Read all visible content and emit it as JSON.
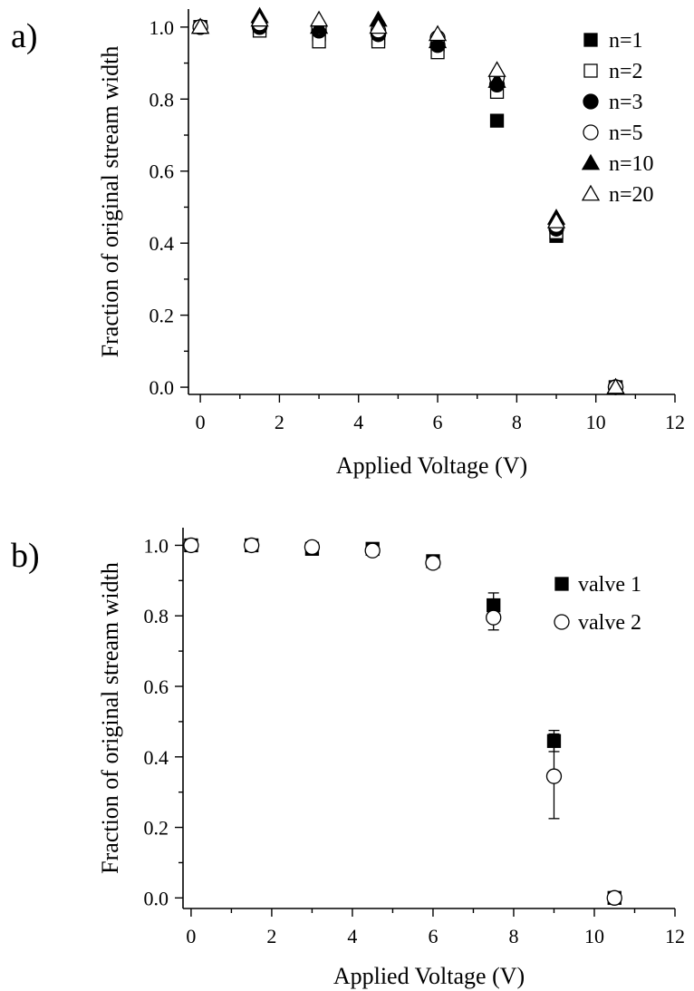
{
  "chart_data": [
    {
      "type": "scatter",
      "panel_label": "a)",
      "xlabel": "Applied Voltage (V)",
      "ylabel": "Fraction of original stream width",
      "xlim": [
        -0.3,
        12
      ],
      "ylim": [
        -0.02,
        1.05
      ],
      "xticks": [
        0,
        2,
        4,
        6,
        8,
        10,
        12
      ],
      "yticks": [
        0.0,
        0.2,
        0.4,
        0.6,
        0.8,
        1.0
      ],
      "ytick_labels": [
        "0.0",
        "0.2",
        "0.4",
        "0.6",
        "0.8",
        "1.0"
      ],
      "legend_position": "top-right",
      "series": [
        {
          "name": "n=1",
          "marker": "square-filled",
          "x": [
            0,
            1.5,
            3,
            4.5,
            6,
            7.5,
            9,
            10.5
          ],
          "y": [
            1.0,
            1.0,
            0.98,
            0.97,
            0.95,
            0.74,
            0.42,
            0.0
          ]
        },
        {
          "name": "n=2",
          "marker": "square-open",
          "x": [
            0,
            1.5,
            3,
            4.5,
            6,
            7.5,
            9,
            10.5
          ],
          "y": [
            1.0,
            0.99,
            0.96,
            0.96,
            0.93,
            0.82,
            0.43,
            0.0
          ]
        },
        {
          "name": "n=3",
          "marker": "circle-filled",
          "x": [
            0,
            1.5,
            3,
            4.5,
            6,
            7.5,
            9,
            10.5
          ],
          "y": [
            1.0,
            1.0,
            0.99,
            0.98,
            0.95,
            0.84,
            0.44,
            0.0
          ]
        },
        {
          "name": "n=5",
          "marker": "circle-open",
          "x": [
            0,
            1.5,
            3,
            4.5,
            6,
            7.5,
            9,
            10.5
          ],
          "y": [
            1.0,
            1.01,
            1.0,
            0.99,
            0.97,
            0.86,
            0.45,
            0.0
          ]
        },
        {
          "name": "n=10",
          "marker": "triangle-filled",
          "x": [
            0,
            1.5,
            3,
            4.5,
            6,
            7.5,
            9,
            10.5
          ],
          "y": [
            1.0,
            1.03,
            1.0,
            1.02,
            0.96,
            0.85,
            0.47,
            0.0
          ]
        },
        {
          "name": "n=20",
          "marker": "triangle-open",
          "x": [
            0,
            1.5,
            3,
            4.5,
            6,
            7.5,
            9,
            10.5
          ],
          "y": [
            1.0,
            1.02,
            1.02,
            1.0,
            0.98,
            0.88,
            0.46,
            0.0
          ]
        }
      ]
    },
    {
      "type": "scatter",
      "panel_label": "b)",
      "xlabel": "Applied Voltage (V)",
      "ylabel": "Fraction of original stream width",
      "xlim": [
        -0.2,
        12
      ],
      "ylim": [
        -0.03,
        1.05
      ],
      "xticks": [
        0,
        2,
        4,
        6,
        8,
        10,
        12
      ],
      "yticks": [
        0.0,
        0.2,
        0.4,
        0.6,
        0.8,
        1.0
      ],
      "ytick_labels": [
        "0.0",
        "0.2",
        "0.4",
        "0.6",
        "0.8",
        "1.0"
      ],
      "legend_position": "right",
      "series": [
        {
          "name": "valve 1",
          "marker": "square-filled",
          "x": [
            0,
            1.5,
            3,
            4.5,
            6,
            7.5,
            9,
            10.5
          ],
          "y": [
            1.0,
            1.0,
            0.99,
            0.99,
            0.955,
            0.83,
            0.445,
            0.0
          ],
          "yerr": [
            0.01,
            0.01,
            0.01,
            0.01,
            0.01,
            0.035,
            0.03,
            0.01
          ]
        },
        {
          "name": "valve 2",
          "marker": "circle-open",
          "x": [
            0,
            1.5,
            3,
            4.5,
            6,
            7.5,
            9,
            10.5
          ],
          "y": [
            1.0,
            1.0,
            0.995,
            0.985,
            0.95,
            0.795,
            0.345,
            0.0
          ],
          "yerr": [
            0.01,
            0.01,
            0.01,
            0.01,
            0.01,
            0.035,
            0.12,
            0.01
          ]
        }
      ]
    }
  ]
}
